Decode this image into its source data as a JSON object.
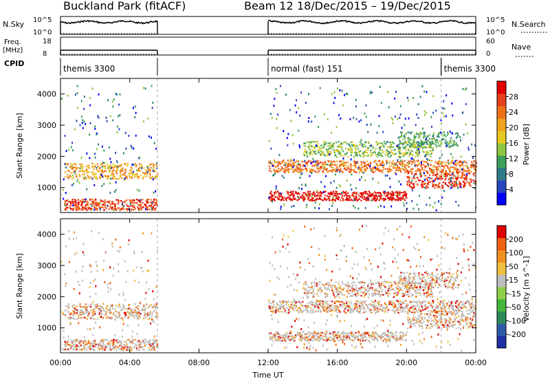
{
  "header": {
    "title": "Buckland Park (fitACF)",
    "beam_label": "Beam 12",
    "date_range": "18/Dec/2015 – 19/Dec/2015"
  },
  "top_panels": {
    "nsky": {
      "label": "N.Sky",
      "ticks": [
        "10^5",
        "10^0"
      ]
    },
    "nsearch": {
      "label": "N.Search",
      "ticks": [
        "10^5",
        "10^0"
      ]
    },
    "freq": {
      "label_line1": "Freq.",
      "label_line2": "[MHz]",
      "ticks": [
        "18",
        "8"
      ]
    },
    "nave": {
      "label": "Nave",
      "ticks": [
        "60",
        "0"
      ]
    },
    "cpid": {
      "label": "CPID",
      "entries": [
        {
          "text": "themis 3300",
          "start_hour": 0.0,
          "end_hour": 5.6
        },
        {
          "text": "normal (fast) 151",
          "start_hour": 12.0,
          "end_hour": 22.0
        },
        {
          "text": "themis 3300",
          "start_hour": 22.0,
          "end_hour": 24.0
        }
      ]
    }
  },
  "chart_data": [
    {
      "type": "heatmap",
      "name": "power",
      "ylabel": "Slant Range [km]",
      "xlabel": "",
      "xlim": [
        0,
        24
      ],
      "ylim": [
        200,
        4500
      ],
      "yticks": [
        "1000",
        "2000",
        "3000",
        "4000"
      ],
      "colorbar": {
        "label": "Power [dB]",
        "ticks": [
          "28",
          "24",
          "20",
          "16",
          "12",
          "8",
          "4"
        ],
        "colors": [
          "#0000ff",
          "#2845c0",
          "#2e7a8a",
          "#3d9f5a",
          "#8dc63f",
          "#e6c81e",
          "#f0a31e",
          "#f07018",
          "#e8401a",
          "#e00000"
        ]
      },
      "data_blocks_hours": [
        [
          0.0,
          5.6
        ],
        [
          12.0,
          24.0
        ]
      ],
      "bands": [
        {
          "x": [
            0.2,
            5.6
          ],
          "range_km": [
            300,
            650
          ],
          "level_db": 24
        },
        {
          "x": [
            0.2,
            5.6
          ],
          "range_km": [
            1300,
            1800
          ],
          "level_db": 18
        },
        {
          "x": [
            12.0,
            20.0
          ],
          "range_km": [
            600,
            900
          ],
          "level_db": 26
        },
        {
          "x": [
            12.0,
            24.0
          ],
          "range_km": [
            1500,
            1900
          ],
          "level_db": 20
        },
        {
          "x": [
            20.0,
            24.0
          ],
          "range_km": [
            1000,
            1500
          ],
          "level_db": 24
        },
        {
          "x": [
            14.0,
            21.5
          ],
          "range_km": [
            2000,
            2500
          ],
          "level_db": 12
        },
        {
          "x": [
            19.5,
            23.0
          ],
          "range_km": [
            2300,
            2800
          ],
          "level_db": 8
        }
      ]
    },
    {
      "type": "heatmap",
      "name": "velocity",
      "ylabel": "Slant Range [km]",
      "xlabel": "Time UT",
      "xlim": [
        0,
        24
      ],
      "ylim": [
        200,
        4500
      ],
      "xticks": [
        "00:00",
        "04:00",
        "08:00",
        "12:00",
        "16:00",
        "20:00",
        "00:00"
      ],
      "yticks": [
        "1000",
        "2000",
        "3000",
        "4000"
      ],
      "colorbar": {
        "label": "Velocity [m s^-1]",
        "ticks": [
          "200",
          "100",
          "50",
          "15",
          "-15",
          "-50",
          "-100",
          "-200"
        ],
        "colors": [
          "#1f2fa6",
          "#2f5aa8",
          "#2f8a5a",
          "#43b63b",
          "#8fd04a",
          "#bebebe",
          "#f0c040",
          "#f09020",
          "#f06010",
          "#e00000"
        ]
      },
      "data_blocks_hours": [
        [
          0.0,
          5.6
        ],
        [
          12.0,
          24.0
        ]
      ]
    }
  ]
}
